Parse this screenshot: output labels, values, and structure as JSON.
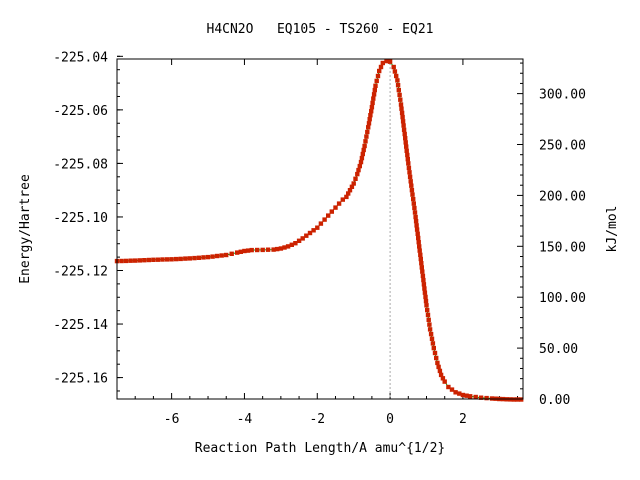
{
  "chart_data": {
    "type": "line",
    "title": "H4CN2O   EQ105 - TS260 - EQ21",
    "xlabel": "Reaction Path Length/A amu^{1/2}",
    "ylabel": "Energy/Hartree",
    "y2label": "kJ/mol",
    "xlim": [
      -7.5,
      3.65
    ],
    "ylim": [
      -225.168,
      -225.041
    ],
    "y2lim": [
      0,
      334
    ],
    "x_ticks": [
      -6,
      -4,
      -2,
      0,
      2
    ],
    "x_tick_labels": [
      "-6",
      "-4",
      "-2",
      "0",
      "2"
    ],
    "y_ticks": [
      -225.04,
      -225.06,
      -225.08,
      -225.1,
      -225.12,
      -225.14,
      -225.16
    ],
    "y_tick_labels": [
      "-225.04",
      "-225.06",
      "-225.08",
      "-225.10",
      "-225.12",
      "-225.14",
      "-225.16"
    ],
    "y2_ticks": [
      0,
      50,
      100,
      150,
      200,
      250,
      300
    ],
    "y2_tick_labels": [
      "0.00",
      "50.00",
      "100.00",
      "150.00",
      "200.00",
      "250.00",
      "300.00"
    ],
    "ts_x": 0,
    "line_color": "#00aa00",
    "marker_color": "#cc2200",
    "ts_line_color": "#aaaaaa",
    "series": [
      {
        "x": [
          -7.5,
          -7.0,
          -6.5,
          -6.0,
          -5.5,
          -5.0,
          -4.5,
          -4.2,
          -4.0,
          -3.8,
          -3.5,
          -3.2,
          -3.0,
          -2.8,
          -2.6,
          -2.4,
          -2.2,
          -2.0,
          -1.8,
          -1.6,
          -1.4,
          -1.3,
          -1.2,
          -1.1,
          -1.0,
          -0.9,
          -0.8,
          -0.7,
          -0.6,
          -0.5,
          -0.4,
          -0.3,
          -0.2,
          -0.1,
          0.0,
          0.1,
          0.2,
          0.3,
          0.4,
          0.5,
          0.6,
          0.7,
          0.8,
          0.9,
          1.0,
          1.1,
          1.2,
          1.3,
          1.4,
          1.5,
          1.6,
          1.8,
          2.0,
          2.2,
          2.5,
          2.8,
          3.0,
          3.2,
          3.4,
          3.6
        ],
        "y": [
          -225.1165,
          -225.1163,
          -225.116,
          -225.1158,
          -225.1155,
          -225.115,
          -225.1142,
          -225.1133,
          -225.1127,
          -225.1124,
          -225.1123,
          -225.1122,
          -225.1118,
          -225.111,
          -225.1098,
          -225.108,
          -225.106,
          -225.104,
          -225.101,
          -225.098,
          -225.095,
          -225.0935,
          -225.0925,
          -225.09,
          -225.0875,
          -225.084,
          -225.0795,
          -225.0735,
          -225.0665,
          -225.059,
          -225.051,
          -225.0455,
          -225.0425,
          -225.0418,
          -225.042,
          -225.044,
          -225.049,
          -225.058,
          -225.069,
          -225.08,
          -225.09,
          -225.1,
          -225.111,
          -225.122,
          -225.133,
          -225.142,
          -225.149,
          -225.1545,
          -225.159,
          -225.1615,
          -225.1635,
          -225.1655,
          -225.1665,
          -225.167,
          -225.1675,
          -225.1678,
          -225.168,
          -225.1681,
          -225.1682,
          -225.1682
        ]
      }
    ]
  }
}
